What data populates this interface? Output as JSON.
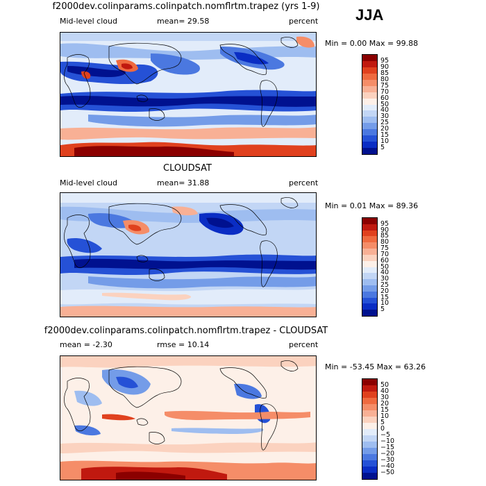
{
  "season": "JJA",
  "panels": [
    {
      "title": "f2000dev.colinparams.colinpatch.nomflrtm.trapez (yrs 1-9)",
      "left_label": "Mid-level cloud",
      "center_label": "mean=  29.58",
      "right_label": "percent",
      "minmax": "Min =   0.00 Max =  99.88",
      "levels": [
        "95",
        "90",
        "85",
        "80",
        "75",
        "70",
        "60",
        "50",
        "40",
        "30",
        "25",
        "20",
        "15",
        "10",
        "5"
      ],
      "colors": [
        "#8b0000",
        "#c0190f",
        "#e0411e",
        "#ef6a3f",
        "#f58d68",
        "#f8b095",
        "#fbd2bf",
        "#fdf0e8",
        "#e2ecfa",
        "#c2d6f5",
        "#9ebdf0",
        "#749ce8",
        "#4b78e0",
        "#2551d6",
        "#0a2dc4",
        "#00118f"
      ]
    },
    {
      "title": "CLOUDSAT",
      "left_label": "Mid-level cloud",
      "center_label": "mean=  31.88",
      "right_label": "percent",
      "minmax": "Min =   0.01 Max =  89.36",
      "levels": [
        "95",
        "90",
        "85",
        "80",
        "75",
        "70",
        "60",
        "50",
        "40",
        "30",
        "25",
        "20",
        "15",
        "10",
        "5"
      ],
      "colors": [
        "#8b0000",
        "#c0190f",
        "#e0411e",
        "#ef6a3f",
        "#f58d68",
        "#f8b095",
        "#fbd2bf",
        "#fdf0e8",
        "#e2ecfa",
        "#c2d6f5",
        "#9ebdf0",
        "#749ce8",
        "#4b78e0",
        "#2551d6",
        "#0a2dc4",
        "#00118f"
      ]
    },
    {
      "title": "f2000dev.colinparams.colinpatch.nomflrtm.trapez - CLOUDSAT",
      "left_label": "mean =  -2.30",
      "center_label": "rmse =  10.14",
      "right_label": "percent",
      "minmax": "Min = -53.45 Max =  63.26",
      "levels": [
        "50",
        "40",
        "30",
        "20",
        "15",
        "10",
        "5",
        "0",
        "−5",
        "−10",
        "−15",
        "−20",
        "−30",
        "−40",
        "−50"
      ],
      "colors": [
        "#8b0000",
        "#c0190f",
        "#e0411e",
        "#ef6a3f",
        "#f58d68",
        "#f8b095",
        "#fbd2bf",
        "#fdf0e8",
        "#e2ecfa",
        "#c2d6f5",
        "#9ebdf0",
        "#749ce8",
        "#4b78e0",
        "#2551d6",
        "#0a2dc4",
        "#00118f"
      ]
    }
  ]
}
